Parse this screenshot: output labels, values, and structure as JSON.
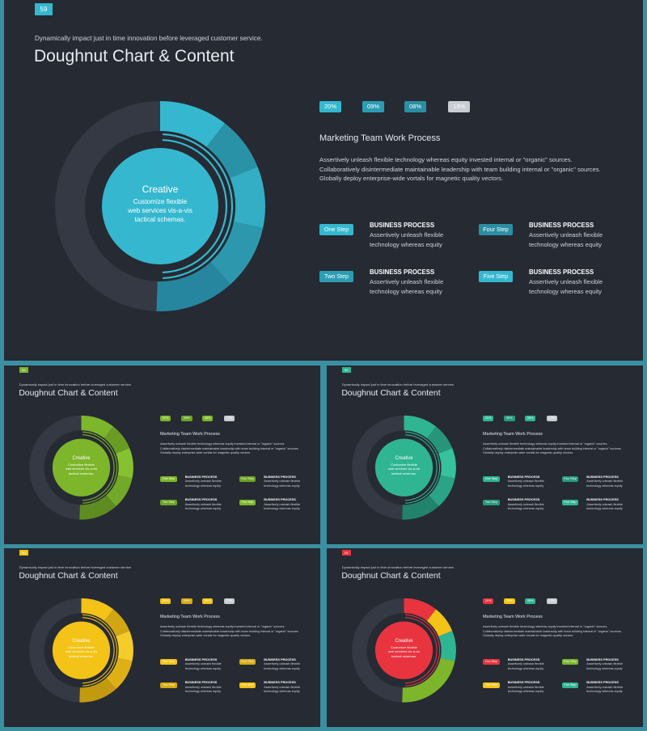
{
  "slides": [
    {
      "page_number": "59",
      "subtitle": "Dynamically impact just in time innovation  before leveraged customer service.",
      "title": "Doughnut Chart & Content",
      "percents": [
        "20%",
        "09%",
        "08%",
        "13%"
      ],
      "percent_colors": [
        "#35b8cf",
        "#2b9db3",
        "#2a8fa3",
        "#c9ccd1"
      ],
      "heading": "Marketing  Team Work Process",
      "paragraph": [
        "Assertively unleash flexible technology whereas equity  invested internal or \"organic\" sources.",
        "Collaboratively disintermediate maintainable leadership with team building internal or \"organic\" sources.",
        "Globally deploy enterprise-wide vortals for magnetic quality vectors."
      ],
      "steps": [
        {
          "label": "One Step",
          "color": "#35b8cf",
          "title": "BUSINESS PROCESS",
          "text": [
            "Assertively unleash flexible",
            "technology whereas equity"
          ]
        },
        {
          "label": "Four Step",
          "color": "#2a8fa3",
          "title": "BUSINESS PROCESS",
          "text": [
            "Assertively unleash flexible",
            "technology whereas equity"
          ]
        },
        {
          "label": "Two Step",
          "color": "#2b9db3",
          "title": "BUSINESS PROCESS",
          "text": [
            "Assertively unleash flexible",
            "technology whereas equity"
          ]
        },
        {
          "label": "Five Step",
          "color": "#35b8cf",
          "title": "BUSINESS PROCESS",
          "text": [
            "Assertively unleash flexible",
            "technology whereas equity"
          ]
        }
      ],
      "center": {
        "title": "Creative",
        "lines": [
          "Customize flexible",
          "web services vis-a-vis",
          "tactical schemas."
        ]
      },
      "accent": "#35b8cf",
      "badge_color": "#35b8cf",
      "segment_colors": [
        "#35b8cf",
        "#2a92a6",
        "#33aec4",
        "#2d98ad",
        "#2686a0"
      ]
    },
    {
      "page_number": "59",
      "subtitle": "Dynamically impact just in time innovation  before leveraged customer service.",
      "title": "Doughnut Chart & Content",
      "percents": [
        "20%",
        "09%",
        "08%",
        "13%"
      ],
      "percent_colors": [
        "#7db62a",
        "#6ea226",
        "#7db62a",
        "#c9ccd1"
      ],
      "heading": "Marketing  Team Work Process",
      "paragraph": [
        "Assertively unleash flexible technology whereas equity invested internal or \"organic\" sources.",
        "Collaboratively disintermediate maintainable leadership with team building internal or \"organic\" sources.",
        "Globally deploy enterprise-wide vortals for magnetic quality vectors."
      ],
      "steps": [
        {
          "label": "One Step",
          "color": "#7db62a",
          "title": "BUSINESS PROCESS",
          "text": [
            "Assertively unleash flexible",
            "technology whereas equity"
          ]
        },
        {
          "label": "Four Step",
          "color": "#6ea226",
          "title": "BUSINESS PROCESS",
          "text": [
            "Assertively unleash flexible",
            "technology whereas equity"
          ]
        },
        {
          "label": "Two Step",
          "color": "#6ea226",
          "title": "BUSINESS PROCESS",
          "text": [
            "Assertively unleash flexible",
            "technology whereas equity"
          ]
        },
        {
          "label": "Five Step",
          "color": "#7db62a",
          "title": "BUSINESS PROCESS",
          "text": [
            "Assertively unleash flexible",
            "technology whereas equity"
          ]
        }
      ],
      "center": {
        "title": "Creative",
        "lines": [
          "Customize flexible",
          "web services vis-a-vis",
          "tactical schemas."
        ]
      },
      "accent": "#7db62a",
      "badge_color": "#7db62a",
      "segment_colors": [
        "#7db62a",
        "#6a9c24",
        "#86c22f",
        "#73a928",
        "#5e8c20"
      ]
    },
    {
      "page_number": "59",
      "subtitle": "Dynamically impact just in time innovation  before leveraged customer service.",
      "title": "Doughnut Chart & Content",
      "percents": [
        "20%",
        "09%",
        "08%",
        "13%"
      ],
      "percent_colors": [
        "#2fb592",
        "#279a7c",
        "#2fb592",
        "#c9ccd1"
      ],
      "heading": "Marketing  Team Work Process",
      "paragraph": [
        "Assertively unleash flexible technology whereas equity invested internal or \"organic\" sources.",
        "Collaboratively disintermediate maintainable leadership with team building internal or \"organic\" sources.",
        "Globally deploy enterprise-wide vortals for magnetic quality vectors."
      ],
      "steps": [
        {
          "label": "One Step",
          "color": "#2fb592",
          "title": "BUSINESS PROCESS",
          "text": [
            "Assertively unleash flexible",
            "technology whereas equity"
          ]
        },
        {
          "label": "Four Step",
          "color": "#279a7c",
          "title": "BUSINESS PROCESS",
          "text": [
            "Assertively unleash flexible",
            "technology whereas equity"
          ]
        },
        {
          "label": "Two Step",
          "color": "#279a7c",
          "title": "BUSINESS PROCESS",
          "text": [
            "Assertively unleash flexible",
            "technology whereas equity"
          ]
        },
        {
          "label": "Five Step",
          "color": "#2fb592",
          "title": "BUSINESS PROCESS",
          "text": [
            "Assertively unleash flexible",
            "technology whereas equity"
          ]
        }
      ],
      "center": {
        "title": "Creative",
        "lines": [
          "Customize flexible",
          "web services vis-a-vis",
          "tactical schemas."
        ]
      },
      "accent": "#2fb592",
      "badge_color": "#2fb592",
      "segment_colors": [
        "#2fb592",
        "#26957a",
        "#35c29d",
        "#2aa386",
        "#21836b"
      ]
    },
    {
      "page_number": "59",
      "subtitle": "Dynamically impact just in time innovation  before leveraged customer service.",
      "title": "Doughnut Chart & Content",
      "percents": [
        "20%",
        "09%",
        "08%",
        "13%"
      ],
      "percent_colors": [
        "#f3c317",
        "#d8aa12",
        "#f3c317",
        "#c9ccd1"
      ],
      "heading": "Marketing  Team Work Process",
      "paragraph": [
        "Assertively unleash flexible technology whereas equity invested internal or \"organic\" sources.",
        "Collaboratively disintermediate maintainable leadership with team building internal or \"organic\" sources.",
        "Globally deploy enterprise-wide vortals for magnetic quality vectors."
      ],
      "steps": [
        {
          "label": "One Step",
          "color": "#f3c317",
          "title": "BUSINESS PROCESS",
          "text": [
            "Assertively unleash flexible",
            "technology whereas equity"
          ]
        },
        {
          "label": "Four Step",
          "color": "#d8aa12",
          "title": "BUSINESS PROCESS",
          "text": [
            "Assertively unleash flexible",
            "technology whereas equity"
          ]
        },
        {
          "label": "Two Step",
          "color": "#d8aa12",
          "title": "BUSINESS PROCESS",
          "text": [
            "Assertively unleash flexible",
            "technology whereas equity"
          ]
        },
        {
          "label": "Five Step",
          "color": "#f3c317",
          "title": "BUSINESS PROCESS",
          "text": [
            "Assertively unleash flexible",
            "technology whereas equity"
          ]
        }
      ],
      "center": {
        "title": "Creative",
        "lines": [
          "Customize flexible",
          "web services vis-a-vis",
          "tactical schemas."
        ]
      },
      "accent": "#f3c317",
      "badge_color": "#f3c317",
      "segment_colors": [
        "#f3c317",
        "#d1a613",
        "#f6cc2a",
        "#deb015",
        "#c19a10"
      ]
    },
    {
      "page_number": "59",
      "subtitle": "Dynamically impact just in time innovation  before leveraged customer service.",
      "title": "Doughnut Chart & Content",
      "percents": [
        "20%",
        "09%",
        "08%",
        "13%"
      ],
      "percent_colors": [
        "#e8343f",
        "#f3c317",
        "#2fb592",
        "#c9ccd1"
      ],
      "heading": "Marketing  Team Work Process",
      "paragraph": [
        "Assertively unleash flexible technology whereas equity invested internal or \"organic\" sources.",
        "Collaboratively disintermediate maintainable leadership with team building internal or \"organic\" sources.",
        "Globally deploy enterprise-wide vortals for magnetic quality vectors."
      ],
      "steps": [
        {
          "label": "One Step",
          "color": "#e8343f",
          "title": "BUSINESS PROCESS",
          "text": [
            "Assertively unleash flexible",
            "technology whereas equity"
          ]
        },
        {
          "label": "Four Step",
          "color": "#7db62a",
          "title": "BUSINESS PROCESS",
          "text": [
            "Assertively unleash flexible",
            "technology whereas equity"
          ]
        },
        {
          "label": "Two Step",
          "color": "#f3c317",
          "title": "BUSINESS PROCESS",
          "text": [
            "Assertively unleash flexible",
            "technology whereas equity"
          ]
        },
        {
          "label": "Five Step",
          "color": "#2fb592",
          "title": "BUSINESS PROCESS",
          "text": [
            "Assertively unleash flexible",
            "technology whereas equity"
          ]
        }
      ],
      "center": {
        "title": "Creative",
        "lines": [
          "Customize flexible",
          "web services vis-a-vis",
          "tactical schemas."
        ]
      },
      "accent": "#e8343f",
      "badge_color": "#e8343f",
      "segment_colors": [
        "#e8343f",
        "#f3c317",
        "#2fb592",
        "#7db62a",
        "#7db62a"
      ]
    }
  ]
}
